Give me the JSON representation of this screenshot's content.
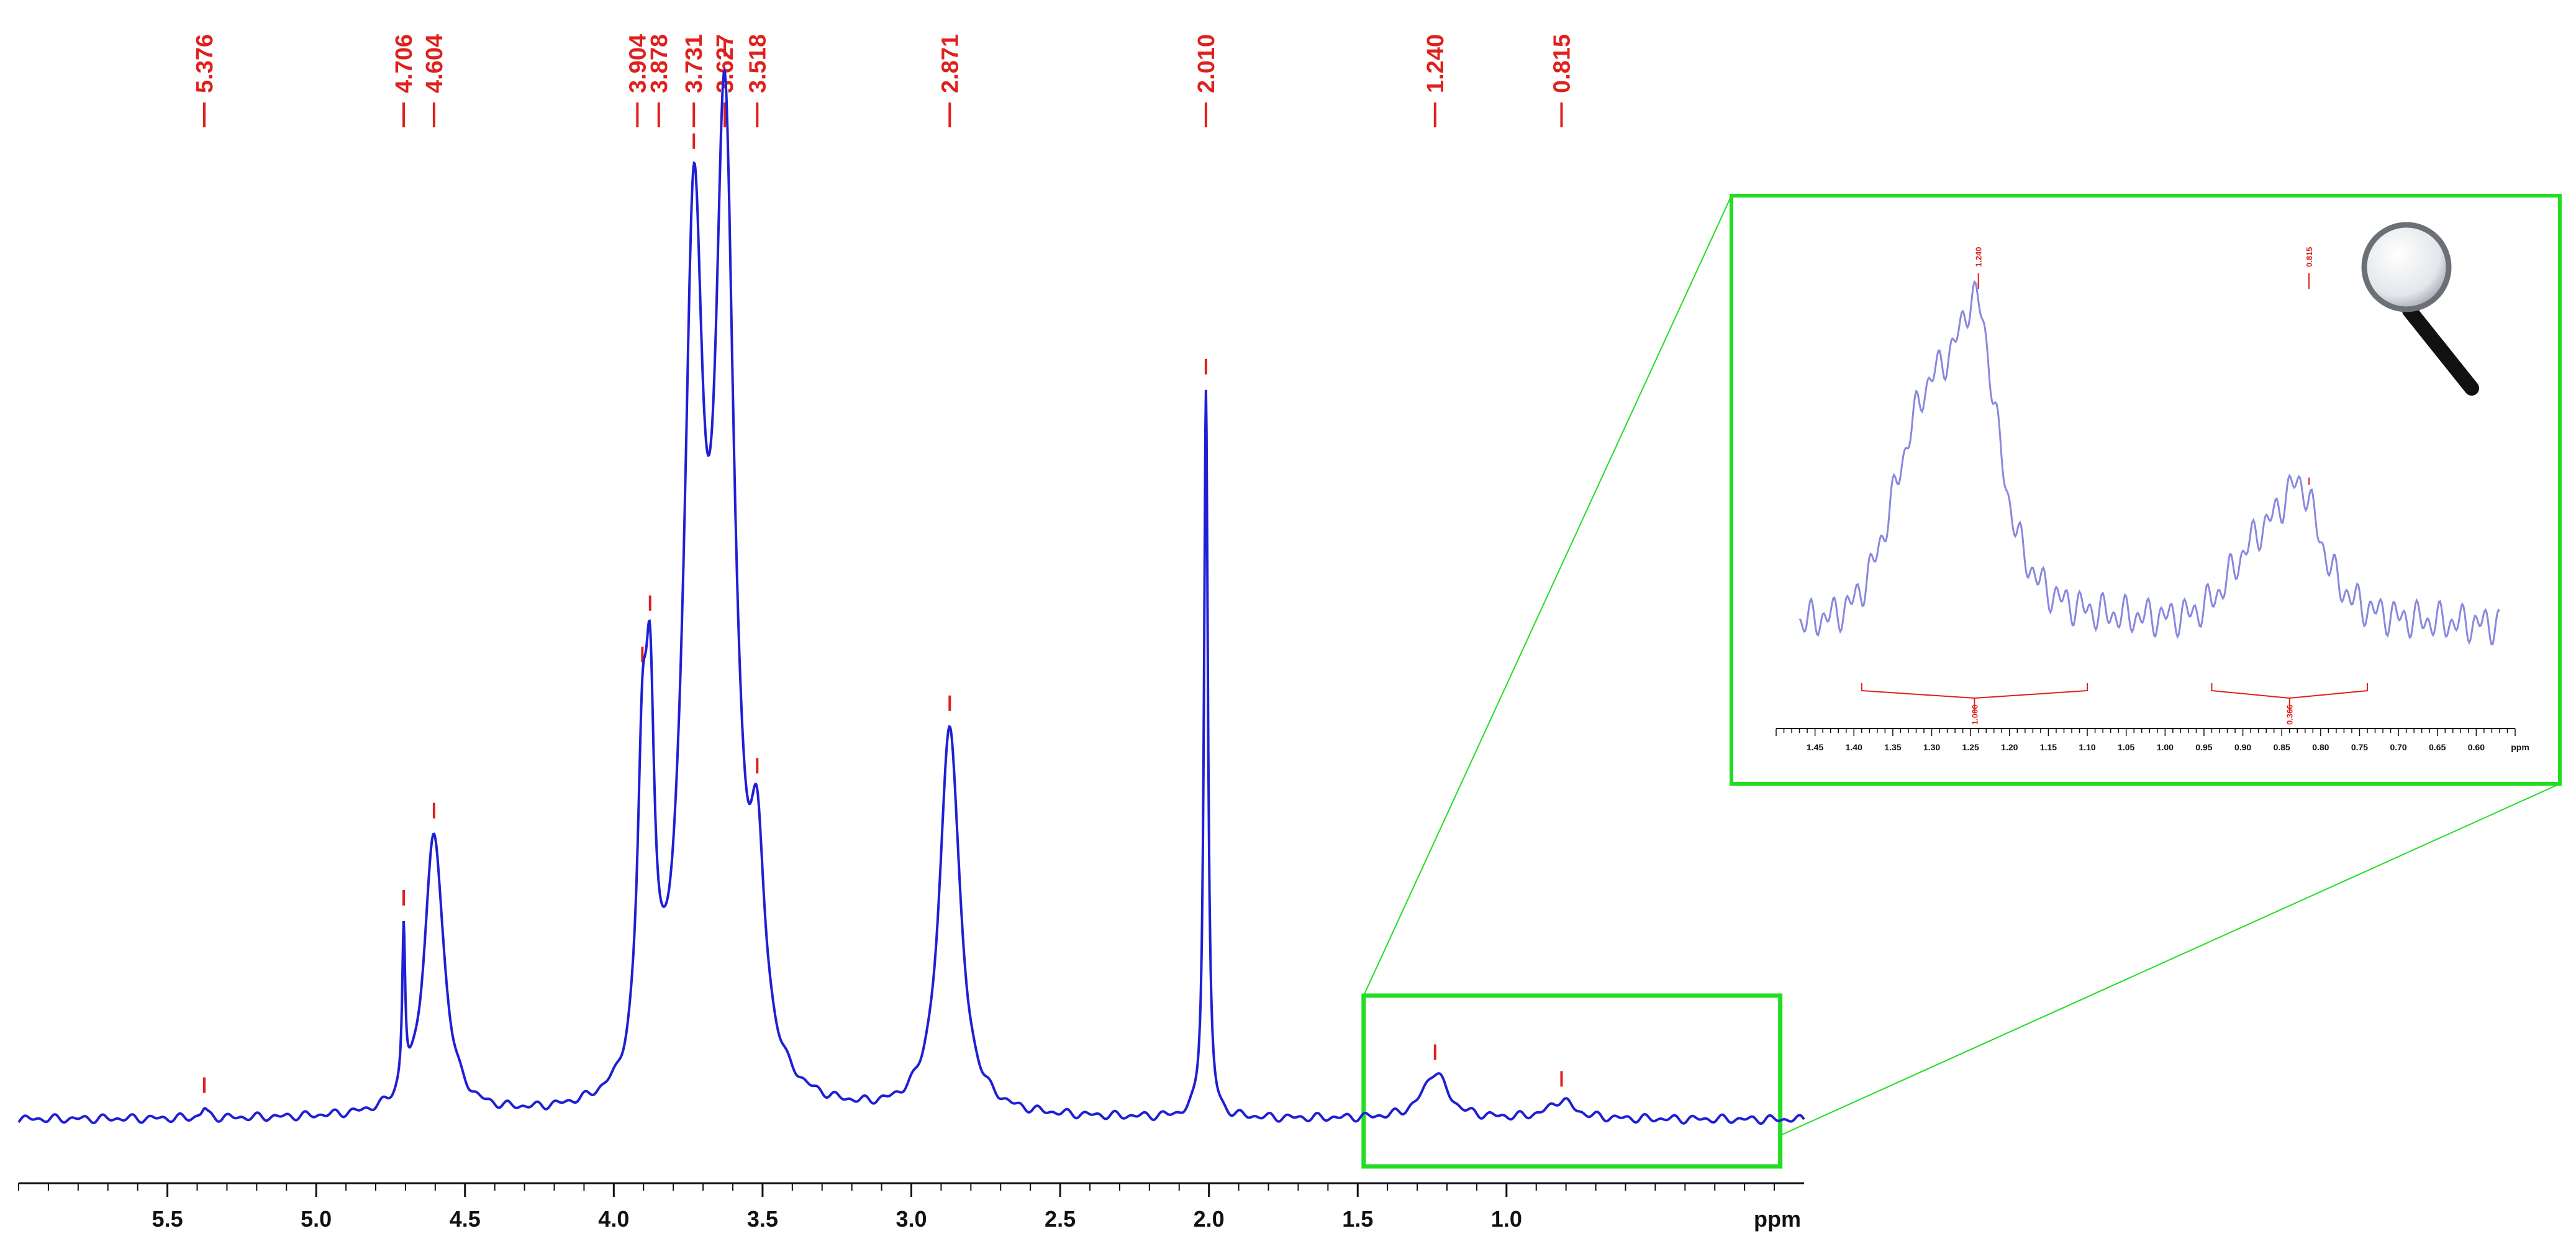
{
  "chart_data": [
    {
      "type": "line",
      "title": "",
      "xlabel": "ppm",
      "ylabel": "",
      "x_axis_reversed": true,
      "xlim": [
        6.0,
        0.0
      ],
      "x_ticks": [
        5.5,
        5.0,
        4.5,
        4.0,
        3.5,
        3.0,
        2.5,
        2.0,
        1.5,
        1.0
      ],
      "x_tick_labels": [
        "5.5",
        "5.0",
        "4.5",
        "4.0",
        "3.5",
        "3.0",
        "2.5",
        "2.0",
        "1.5",
        "1.0"
      ],
      "grid": false,
      "line_color": "#1f1fd6",
      "peak_label_color": "#e0201c",
      "highlight_box_color": "#22dd22",
      "peaks": [
        {
          "ppm": 5.376,
          "label": "5.376",
          "height": 0.01,
          "width": 0.012
        },
        {
          "ppm": 4.706,
          "label": "4.706",
          "height": 0.17,
          "width": 0.006
        },
        {
          "ppm": 4.604,
          "label": "4.604",
          "height": 0.3,
          "width": 0.04
        },
        {
          "ppm": 3.904,
          "label": "3.904",
          "height": 0.3,
          "width": 0.02
        },
        {
          "ppm": 3.878,
          "label": "3.878",
          "height": 0.33,
          "width": 0.018
        },
        {
          "ppm": 3.731,
          "label": "3.731",
          "height": 0.88,
          "width": 0.04
        },
        {
          "ppm": 3.627,
          "label": "3.627",
          "height": 0.99,
          "width": 0.04
        },
        {
          "ppm": 3.518,
          "label": "3.518",
          "height": 0.2,
          "width": 0.03
        },
        {
          "ppm": 2.871,
          "label": "2.871",
          "height": 0.42,
          "width": 0.04
        },
        {
          "ppm": 2.01,
          "label": "2.010",
          "height": 0.78,
          "width": 0.008
        },
        {
          "ppm": 1.24,
          "label": "1.240",
          "height": 0.05,
          "width": 0.05
        },
        {
          "ppm": 0.815,
          "label": "0.815",
          "height": 0.02,
          "width": 0.05
        }
      ],
      "zoom_region_ppm": [
        1.48,
        0.08
      ]
    },
    {
      "type": "line",
      "title": "",
      "xlabel": "ppm",
      "xlim": [
        1.5,
        0.55
      ],
      "x_ticks": [
        1.45,
        1.4,
        1.35,
        1.3,
        1.25,
        1.2,
        1.15,
        1.1,
        1.05,
        1.0,
        0.95,
        0.9,
        0.85,
        0.8,
        0.75,
        0.7,
        0.65,
        0.6
      ],
      "x_tick_labels": [
        "1.45",
        "1.40",
        "1.35",
        "1.30",
        "1.25",
        "1.20",
        "1.15",
        "1.10",
        "1.05",
        "1.00",
        "0.95",
        "0.90",
        "0.85",
        "0.80",
        "0.75",
        "0.70",
        "0.65",
        "0.60"
      ],
      "line_color": "#8888e0",
      "peaks": [
        {
          "ppm": 1.24,
          "label": "1.240"
        },
        {
          "ppm": 0.815,
          "label": "0.815"
        }
      ],
      "integrals": [
        {
          "from": 1.39,
          "to": 1.1,
          "label": "1.000"
        },
        {
          "from": 0.94,
          "to": 0.74,
          "label": "0.366"
        }
      ]
    }
  ],
  "icons": {
    "magnifier": "magnifying-glass-icon"
  }
}
